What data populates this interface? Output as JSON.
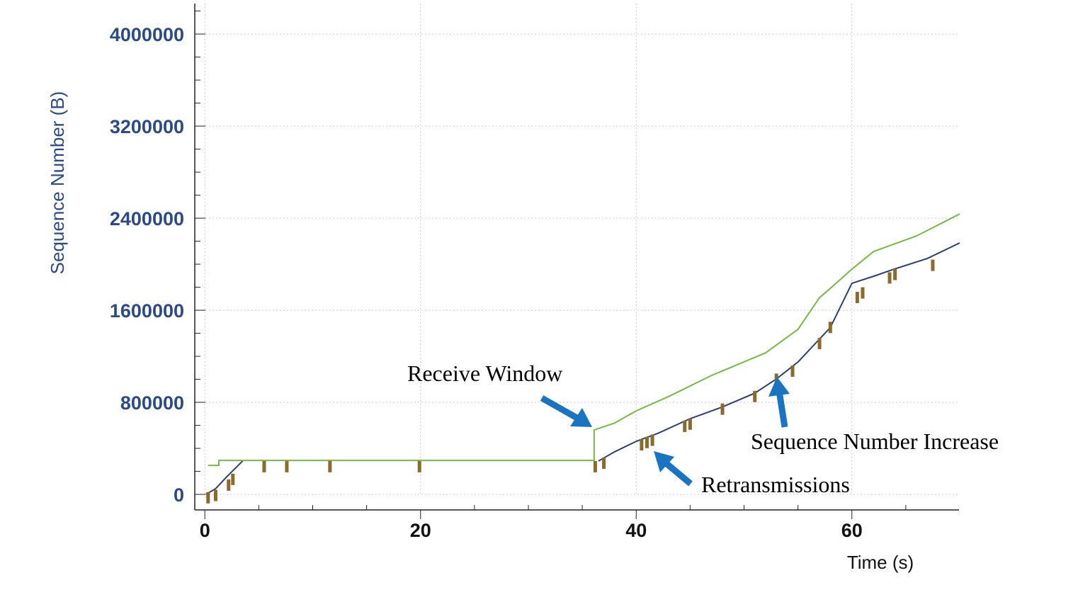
{
  "chart_data": {
    "type": "line",
    "x_label": "Time (s)",
    "y_label": "Sequence Number (B)",
    "xlim": [
      -1,
      70
    ],
    "ylim": [
      -135000,
      4265000
    ],
    "xticks": [
      0,
      20,
      40,
      60
    ],
    "yticks": [
      0,
      800000,
      1600000,
      2400000,
      3200000,
      4000000
    ],
    "x_minor_ticks": [
      5,
      10,
      15,
      25,
      30,
      35,
      45,
      50,
      55,
      65
    ],
    "y_minor_ticks": [
      200000,
      400000,
      600000,
      1000000,
      1200000,
      1400000,
      1800000,
      2000000,
      2200000,
      2600000,
      2800000,
      3000000,
      3400000,
      3600000,
      3800000,
      4200000
    ],
    "grid": true,
    "series": [
      {
        "color": "#7ab648",
        "marker": "line",
        "x": [
          0.3,
          1.3,
          1.3,
          36.1,
          36.1,
          38,
          40,
          43,
          47,
          52,
          55,
          57,
          58,
          60,
          62,
          66,
          70
        ],
        "values": [
          252000,
          252000,
          295000,
          295000,
          560000,
          620000,
          726000,
          850000,
          1034000,
          1230000,
          1434000,
          1710000,
          1790000,
          1957000,
          2110000,
          2246000,
          2437000
        ]
      },
      {
        "color": "#2e3f6e",
        "marker": "line",
        "x": [
          0.1,
          1,
          2,
          3.5,
          null,
          36.5,
          38,
          40,
          42,
          45,
          48,
          51,
          53,
          55,
          57,
          58,
          60,
          62,
          64,
          67,
          70
        ],
        "values": [
          0,
          50000,
          150000,
          290000,
          null,
          290000,
          370000,
          461000,
          530000,
          658000,
          760000,
          880000,
          1003000,
          1150000,
          1350000,
          1450000,
          1834000,
          1895000,
          1960000,
          2050000,
          2185000
        ]
      },
      {
        "color": "#8b6a2e",
        "marker": "tick",
        "x": [
          0.3,
          1,
          2.2,
          2.6,
          5.5,
          7.6,
          11.6,
          19.9,
          36.2,
          37,
          40.5,
          41,
          41.5,
          44.5,
          45,
          48,
          51,
          53,
          54.5,
          57,
          58,
          60.5,
          61,
          63.5,
          64,
          67.5
        ],
        "values": [
          20000,
          40000,
          130000,
          180000,
          290000,
          290000,
          290000,
          290000,
          290000,
          320000,
          480000,
          500000,
          520000,
          640000,
          660000,
          790000,
          900000,
          1050000,
          1120000,
          1360000,
          1500000,
          1760000,
          1800000,
          1930000,
          1960000,
          2040000
        ]
      }
    ],
    "annotations": [
      {
        "text": "Receive Window"
      },
      {
        "text": "Sequence Number Increase"
      },
      {
        "text": "Retransmissions"
      }
    ]
  }
}
